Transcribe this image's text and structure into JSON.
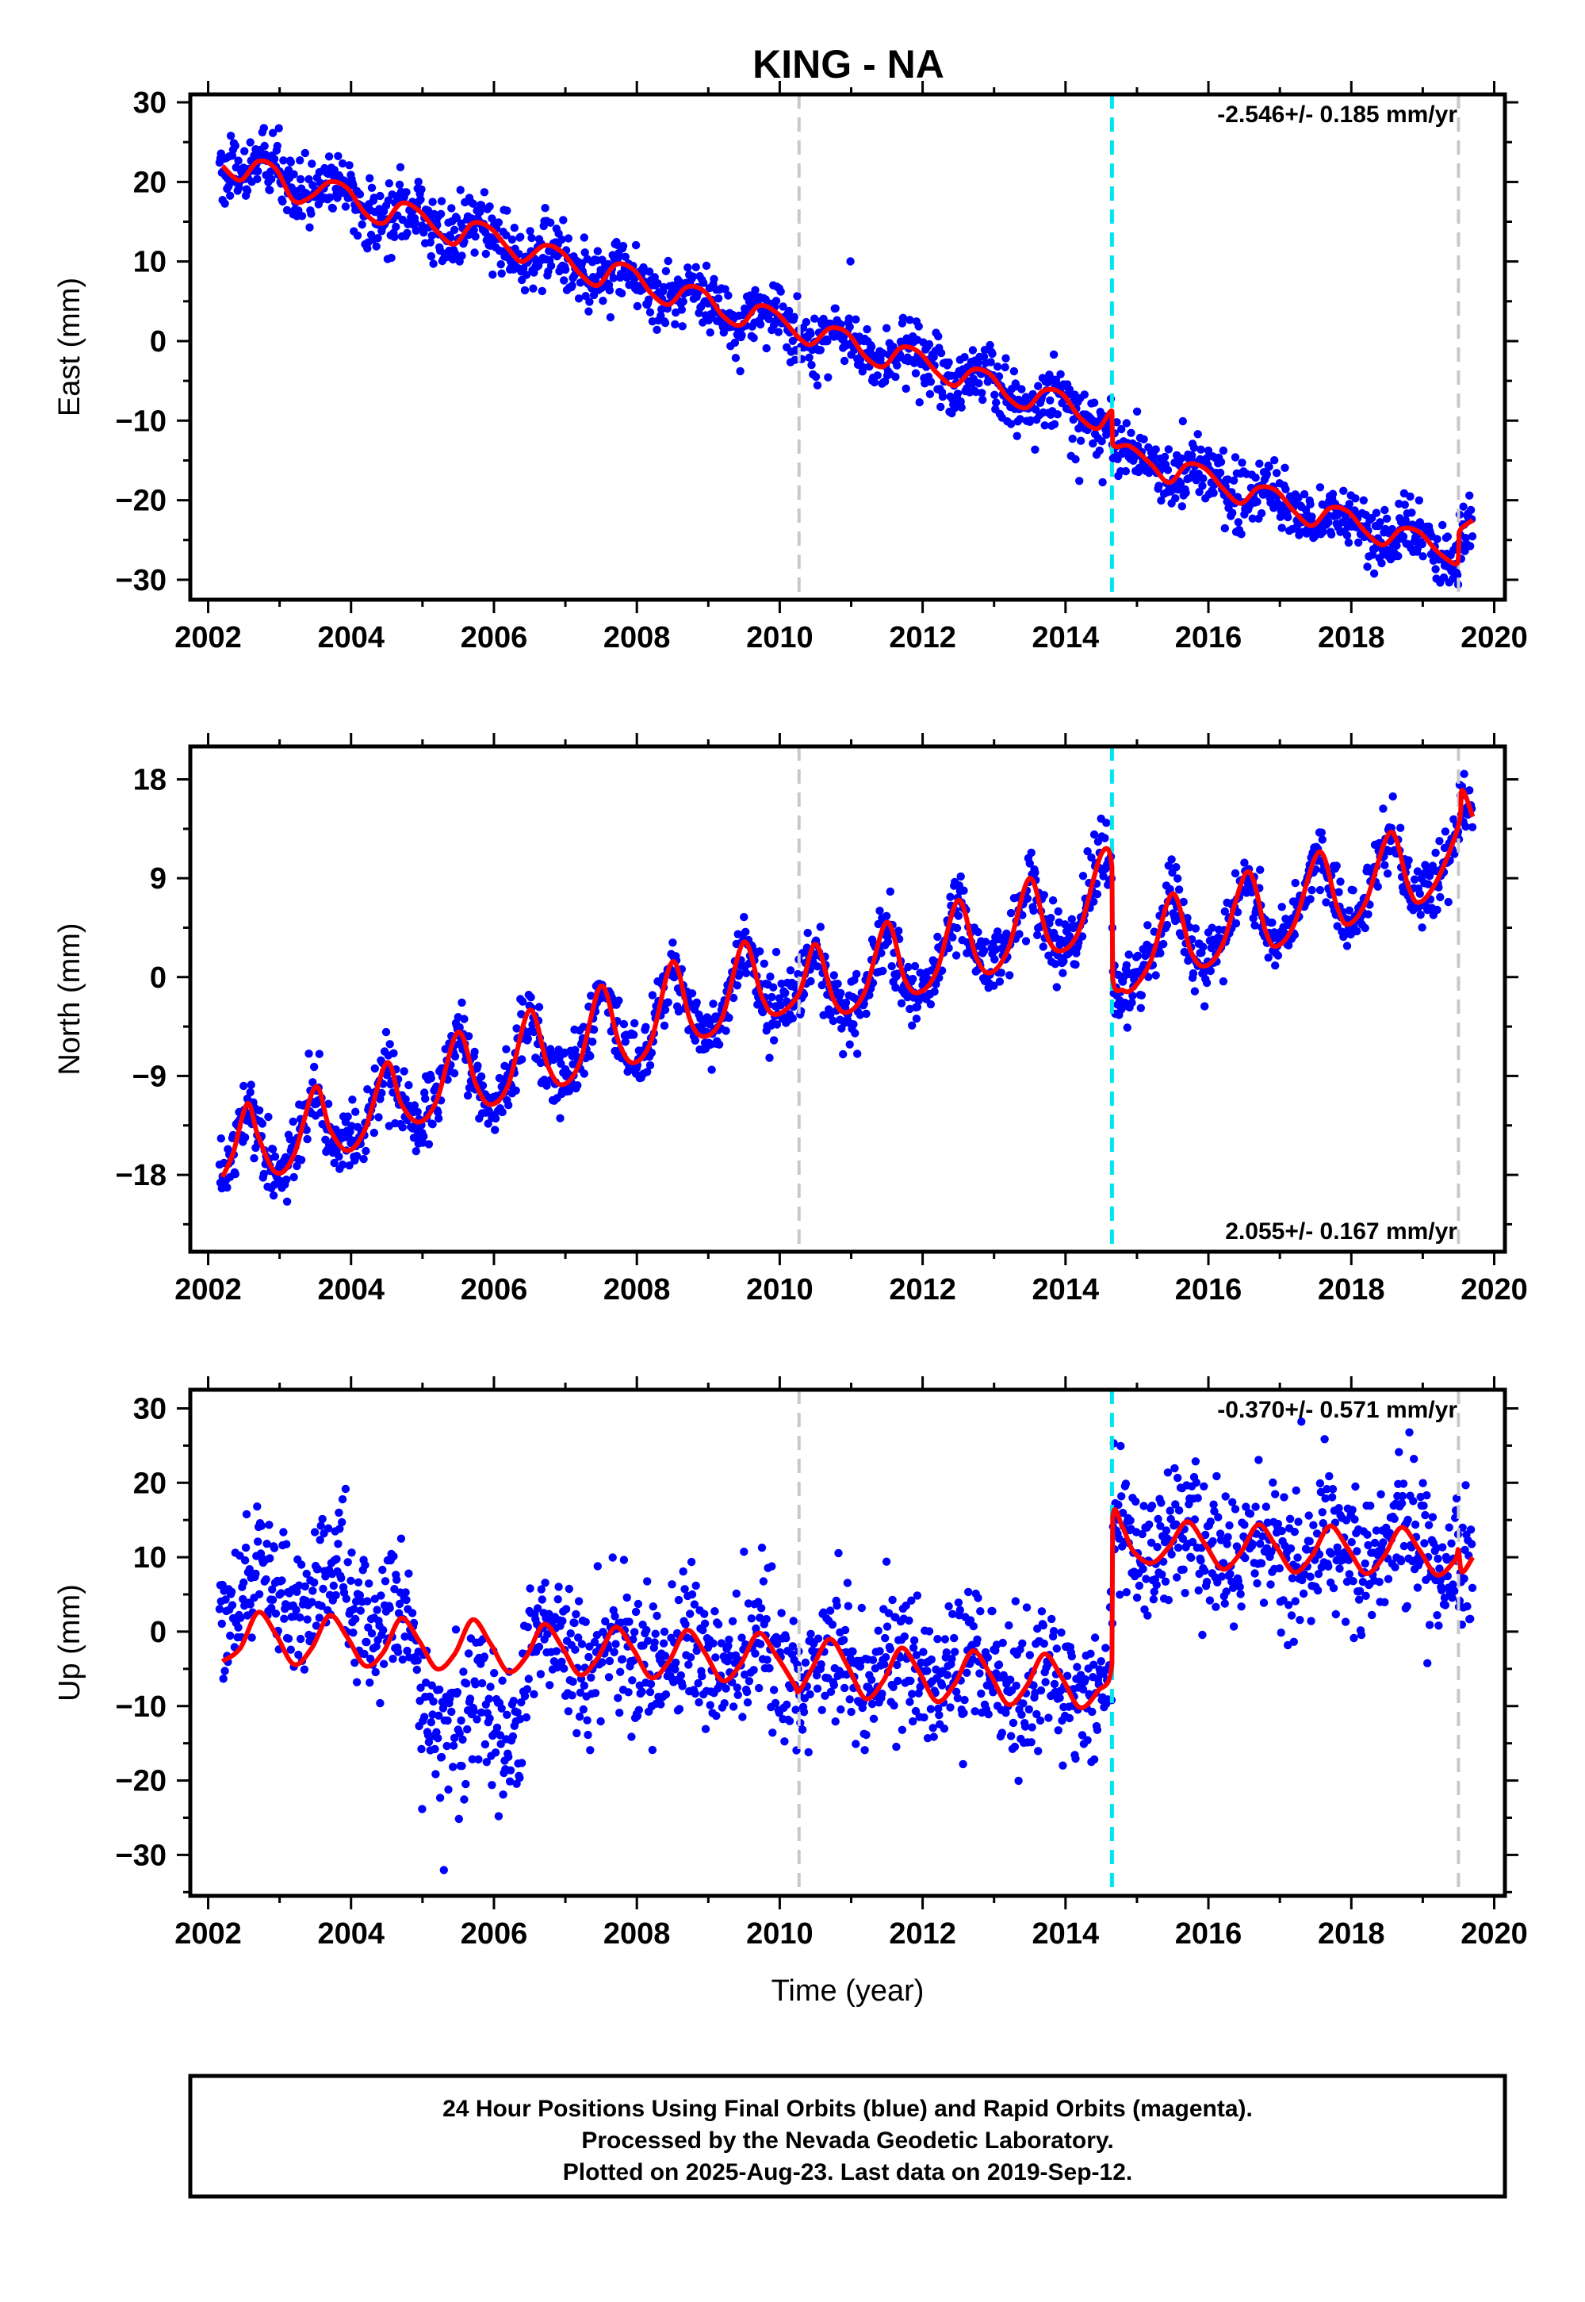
{
  "figure": {
    "title": "KING - NA",
    "footer_lines": [
      "24 Hour Positions Using Final Orbits (blue) and Rapid Orbits (magenta).",
      "Processed by the Nevada Geodetic Laboratory.",
      "Plotted on 2025-Aug-23. Last data on 2019-Sep-12."
    ]
  },
  "chart_data": [
    {
      "type": "scatter",
      "name": "east",
      "ylabel": "East (mm)",
      "xlabel": "",
      "xlim": [
        2001.75,
        2020.15
      ],
      "ylim": [
        -32.5,
        31
      ],
      "xticks": [
        2002,
        2004,
        2006,
        2008,
        2010,
        2012,
        2014,
        2016,
        2018,
        2020
      ],
      "yticks": [
        30,
        20,
        10,
        0,
        -10,
        -20,
        -30
      ],
      "ytick_labels": [
        "30",
        "20",
        "10",
        "0",
        "−10",
        "−20",
        "−30"
      ],
      "rate_label": "-2.546+/- 0.185 mm/yr",
      "rate_position": "top-right",
      "grid": false,
      "colors": {
        "points": "#0000ff",
        "model": "#ff0000",
        "equipment": "#c8c8c8",
        "offset": "#00e5f0"
      },
      "equipment_change_lines": [
        2010.27,
        2019.5
      ],
      "offset_lines": [
        2014.65
      ],
      "model": [
        [
          2002.2,
          22.0
        ],
        [
          2002.45,
          20.2
        ],
        [
          2002.7,
          22.6
        ],
        [
          2002.95,
          21.6
        ],
        [
          2003.2,
          17.6
        ],
        [
          2003.45,
          18.2
        ],
        [
          2003.7,
          20.0
        ],
        [
          2003.95,
          19.2
        ],
        [
          2004.2,
          16.0
        ],
        [
          2004.45,
          14.8
        ],
        [
          2004.7,
          17.3
        ],
        [
          2004.95,
          16.4
        ],
        [
          2005.2,
          13.8
        ],
        [
          2005.45,
          12.2
        ],
        [
          2005.7,
          14.8
        ],
        [
          2005.95,
          14.2
        ],
        [
          2006.2,
          11.6
        ],
        [
          2006.4,
          10.0
        ],
        [
          2006.7,
          12.0
        ],
        [
          2006.95,
          11.2
        ],
        [
          2007.2,
          8.5
        ],
        [
          2007.45,
          7.0
        ],
        [
          2007.7,
          9.6
        ],
        [
          2007.95,
          9.0
        ],
        [
          2008.2,
          6.0
        ],
        [
          2008.45,
          4.6
        ],
        [
          2008.7,
          6.8
        ],
        [
          2008.95,
          6.2
        ],
        [
          2009.2,
          3.2
        ],
        [
          2009.45,
          2.0
        ],
        [
          2009.7,
          4.4
        ],
        [
          2009.95,
          3.6
        ],
        [
          2010.27,
          0.4
        ],
        [
          2010.45,
          -0.4
        ],
        [
          2010.7,
          1.6
        ],
        [
          2010.95,
          1.0
        ],
        [
          2011.2,
          -2.0
        ],
        [
          2011.45,
          -3.2
        ],
        [
          2011.7,
          -0.8
        ],
        [
          2011.95,
          -1.4
        ],
        [
          2012.2,
          -4.0
        ],
        [
          2012.45,
          -5.6
        ],
        [
          2012.7,
          -3.6
        ],
        [
          2012.95,
          -4.2
        ],
        [
          2013.2,
          -7.2
        ],
        [
          2013.45,
          -8.4
        ],
        [
          2013.7,
          -6.2
        ],
        [
          2013.95,
          -6.6
        ],
        [
          2014.2,
          -9.6
        ],
        [
          2014.45,
          -11.0
        ],
        [
          2014.65,
          -8.8
        ],
        [
          2014.66,
          -13.0
        ],
        [
          2014.9,
          -13.2
        ],
        [
          2015.2,
          -15.5
        ],
        [
          2015.45,
          -17.8
        ],
        [
          2015.7,
          -15.5
        ],
        [
          2015.95,
          -16.0
        ],
        [
          2016.2,
          -18.5
        ],
        [
          2016.45,
          -20.4
        ],
        [
          2016.7,
          -18.4
        ],
        [
          2016.95,
          -18.8
        ],
        [
          2017.2,
          -21.4
        ],
        [
          2017.45,
          -23.2
        ],
        [
          2017.7,
          -21.0
        ],
        [
          2017.95,
          -21.4
        ],
        [
          2018.2,
          -24.0
        ],
        [
          2018.45,
          -25.6
        ],
        [
          2018.7,
          -23.6
        ],
        [
          2018.95,
          -24.0
        ],
        [
          2019.2,
          -26.4
        ],
        [
          2019.45,
          -28.0
        ],
        [
          2019.5,
          -27.0
        ],
        [
          2019.51,
          -24.0
        ],
        [
          2019.7,
          -22.5
        ]
      ]
    },
    {
      "type": "scatter",
      "name": "north",
      "ylabel": "North (mm)",
      "xlabel": "",
      "xlim": [
        2001.75,
        2020.15
      ],
      "ylim": [
        -25,
        21
      ],
      "xticks": [
        2002,
        2004,
        2006,
        2008,
        2010,
        2012,
        2014,
        2016,
        2018,
        2020
      ],
      "yticks": [
        18,
        9,
        0,
        -9,
        -18
      ],
      "ytick_labels": [
        "18",
        "9",
        "0",
        "−9",
        "−18"
      ],
      "rate_label": "2.055+/- 0.167 mm/yr",
      "rate_position": "bottom-right",
      "grid": false,
      "colors": {
        "points": "#0000ff",
        "model": "#ff0000",
        "equipment": "#c8c8c8",
        "offset": "#00e5f0"
      },
      "equipment_change_lines": [
        2010.27,
        2019.5
      ],
      "offset_lines": [
        2014.65
      ],
      "model": [
        [
          2002.2,
          -18.2
        ],
        [
          2002.35,
          -16.0
        ],
        [
          2002.55,
          -11.5
        ],
        [
          2002.7,
          -14.5
        ],
        [
          2002.95,
          -17.8
        ],
        [
          2003.2,
          -16.2
        ],
        [
          2003.5,
          -10.0
        ],
        [
          2003.7,
          -13.8
        ],
        [
          2003.95,
          -15.8
        ],
        [
          2004.2,
          -13.8
        ],
        [
          2004.5,
          -7.8
        ],
        [
          2004.7,
          -11.5
        ],
        [
          2004.95,
          -13.2
        ],
        [
          2005.2,
          -11.2
        ],
        [
          2005.5,
          -5.0
        ],
        [
          2005.75,
          -9.8
        ],
        [
          2005.95,
          -11.6
        ],
        [
          2006.2,
          -9.8
        ],
        [
          2006.5,
          -3.0
        ],
        [
          2006.75,
          -8.0
        ],
        [
          2006.95,
          -9.8
        ],
        [
          2007.2,
          -7.8
        ],
        [
          2007.5,
          -0.8
        ],
        [
          2007.75,
          -6.0
        ],
        [
          2007.95,
          -7.8
        ],
        [
          2008.2,
          -5.8
        ],
        [
          2008.5,
          1.4
        ],
        [
          2008.75,
          -4.0
        ],
        [
          2008.95,
          -5.4
        ],
        [
          2009.2,
          -3.6
        ],
        [
          2009.5,
          3.2
        ],
        [
          2009.75,
          -1.8
        ],
        [
          2009.95,
          -3.4
        ],
        [
          2010.27,
          -1.5
        ],
        [
          2010.5,
          3.0
        ],
        [
          2010.75,
          -2.0
        ],
        [
          2010.95,
          -3.2
        ],
        [
          2011.2,
          -1.2
        ],
        [
          2011.5,
          5.0
        ],
        [
          2011.75,
          -0.2
        ],
        [
          2011.95,
          -1.4
        ],
        [
          2012.2,
          0.6
        ],
        [
          2012.5,
          7.0
        ],
        [
          2012.75,
          1.8
        ],
        [
          2012.95,
          0.4
        ],
        [
          2013.2,
          2.6
        ],
        [
          2013.5,
          9.0
        ],
        [
          2013.75,
          3.6
        ],
        [
          2013.95,
          2.4
        ],
        [
          2014.2,
          4.4
        ],
        [
          2014.5,
          11.2
        ],
        [
          2014.65,
          10.0
        ],
        [
          2014.66,
          0.0
        ],
        [
          2014.8,
          -1.2
        ],
        [
          2014.95,
          -1.0
        ],
        [
          2015.2,
          1.6
        ],
        [
          2015.5,
          7.6
        ],
        [
          2015.75,
          2.4
        ],
        [
          2015.95,
          1.0
        ],
        [
          2016.2,
          3.0
        ],
        [
          2016.55,
          9.6
        ],
        [
          2016.8,
          4.2
        ],
        [
          2016.95,
          2.8
        ],
        [
          2017.2,
          4.8
        ],
        [
          2017.55,
          11.4
        ],
        [
          2017.8,
          6.4
        ],
        [
          2017.95,
          4.8
        ],
        [
          2018.2,
          6.8
        ],
        [
          2018.55,
          13.2
        ],
        [
          2018.8,
          8.2
        ],
        [
          2018.95,
          6.8
        ],
        [
          2019.2,
          8.8
        ],
        [
          2019.5,
          13.8
        ],
        [
          2019.55,
          17.0
        ],
        [
          2019.7,
          14.6
        ]
      ]
    },
    {
      "type": "scatter",
      "name": "up",
      "ylabel": "Up (mm)",
      "xlabel": "Time (year)",
      "xlim": [
        2001.75,
        2020.15
      ],
      "ylim": [
        -35.5,
        32.5
      ],
      "xticks": [
        2002,
        2004,
        2006,
        2008,
        2010,
        2012,
        2014,
        2016,
        2018,
        2020
      ],
      "yticks": [
        30,
        20,
        10,
        0,
        -10,
        -20,
        -30
      ],
      "ytick_labels": [
        "30",
        "20",
        "10",
        "0",
        "−10",
        "−20",
        "−30"
      ],
      "rate_label": "-0.370+/- 0.571 mm/yr",
      "rate_position": "top-right",
      "grid": false,
      "colors": {
        "points": "#0000ff",
        "model": "#ff0000",
        "equipment": "#c8c8c8",
        "offset": "#00e5f0"
      },
      "equipment_change_lines": [
        2010.27,
        2019.5
      ],
      "offset_lines": [
        2014.65
      ],
      "model": [
        [
          2002.2,
          -4.0
        ],
        [
          2002.45,
          -2.2
        ],
        [
          2002.7,
          2.6
        ],
        [
          2002.95,
          -0.4
        ],
        [
          2003.2,
          -4.4
        ],
        [
          2003.45,
          -2.2
        ],
        [
          2003.7,
          2.2
        ],
        [
          2003.95,
          -0.8
        ],
        [
          2004.2,
          -4.6
        ],
        [
          2004.45,
          -2.8
        ],
        [
          2004.7,
          1.8
        ],
        [
          2004.95,
          -1.2
        ],
        [
          2005.2,
          -5.0
        ],
        [
          2005.45,
          -3.0
        ],
        [
          2005.7,
          1.6
        ],
        [
          2005.95,
          -1.6
        ],
        [
          2006.2,
          -5.4
        ],
        [
          2006.45,
          -3.4
        ],
        [
          2006.7,
          1.0
        ],
        [
          2006.95,
          -2.0
        ],
        [
          2007.2,
          -5.8
        ],
        [
          2007.45,
          -3.6
        ],
        [
          2007.7,
          0.6
        ],
        [
          2007.95,
          -2.4
        ],
        [
          2008.2,
          -6.2
        ],
        [
          2008.45,
          -4.0
        ],
        [
          2008.7,
          0.2
        ],
        [
          2008.95,
          -2.8
        ],
        [
          2009.2,
          -6.6
        ],
        [
          2009.45,
          -4.4
        ],
        [
          2009.7,
          -0.2
        ],
        [
          2009.95,
          -3.2
        ],
        [
          2010.2,
          -7.0
        ],
        [
          2010.27,
          -8.0
        ],
        [
          2010.45,
          -5.0
        ],
        [
          2010.7,
          -1.0
        ],
        [
          2010.95,
          -4.6
        ],
        [
          2011.2,
          -9.0
        ],
        [
          2011.45,
          -6.6
        ],
        [
          2011.7,
          -2.2
        ],
        [
          2011.95,
          -5.4
        ],
        [
          2012.2,
          -9.4
        ],
        [
          2012.45,
          -7.0
        ],
        [
          2012.7,
          -2.6
        ],
        [
          2012.95,
          -5.8
        ],
        [
          2013.2,
          -9.8
        ],
        [
          2013.45,
          -7.4
        ],
        [
          2013.7,
          -3.0
        ],
        [
          2013.95,
          -6.2
        ],
        [
          2014.2,
          -10.2
        ],
        [
          2014.45,
          -8.0
        ],
        [
          2014.65,
          -4.2
        ],
        [
          2014.66,
          15.2
        ],
        [
          2014.8,
          14.0
        ],
        [
          2014.95,
          10.8
        ],
        [
          2015.2,
          9.2
        ],
        [
          2015.45,
          11.4
        ],
        [
          2015.7,
          14.8
        ],
        [
          2015.95,
          11.8
        ],
        [
          2016.2,
          8.4
        ],
        [
          2016.45,
          10.6
        ],
        [
          2016.7,
          14.4
        ],
        [
          2016.95,
          11.4
        ],
        [
          2017.2,
          8.0
        ],
        [
          2017.45,
          10.2
        ],
        [
          2017.7,
          14.2
        ],
        [
          2017.95,
          11.2
        ],
        [
          2018.2,
          7.8
        ],
        [
          2018.45,
          10.0
        ],
        [
          2018.7,
          14.0
        ],
        [
          2018.95,
          11.0
        ],
        [
          2019.2,
          7.6
        ],
        [
          2019.45,
          9.6
        ],
        [
          2019.5,
          11.0
        ],
        [
          2019.55,
          8.0
        ],
        [
          2019.7,
          10.0
        ]
      ]
    }
  ]
}
